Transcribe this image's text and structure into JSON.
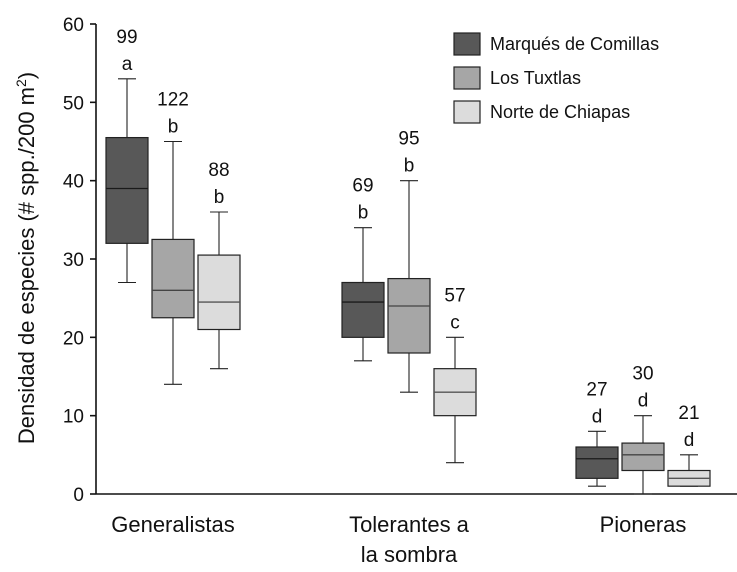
{
  "chart_data": {
    "type": "box",
    "ylabel": "Densidad de especies (# spp./200 m²)",
    "ylabel_main": "Densidad de especies (# spp./200 m",
    "ylabel_sup": "2",
    "ylabel_end": ")",
    "ylim": [
      0,
      60
    ],
    "yticks": [
      0,
      10,
      20,
      30,
      40,
      50,
      60
    ],
    "grid": false,
    "legend_position": "top-right",
    "categories": [
      "Generalistas",
      "Tolerantes a la sombra",
      "Pioneras"
    ],
    "category_lines": [
      [
        "Generalistas"
      ],
      [
        "Tolerantes a",
        "la sombra"
      ],
      [
        "Pioneras"
      ]
    ],
    "series": [
      {
        "name": "Marqués de Comillas",
        "color": "#585858",
        "median_color": "#1a1a1a",
        "boxes": [
          {
            "whisker_low": 27,
            "q1": 32,
            "median": 39,
            "q3": 45.5,
            "whisker_high": 53,
            "n": "99",
            "letter": "a"
          },
          {
            "whisker_low": 17,
            "q1": 20,
            "median": 24.5,
            "q3": 27,
            "whisker_high": 34,
            "n": "69",
            "letter": "b"
          },
          {
            "whisker_low": 1,
            "q1": 2,
            "median": 4.5,
            "q3": 6,
            "whisker_high": 8,
            "n": "27",
            "letter": "d"
          }
        ]
      },
      {
        "name": "Los Tuxtlas",
        "color": "#a6a6a6",
        "median_color": "#444444",
        "boxes": [
          {
            "whisker_low": 14,
            "q1": 22.5,
            "median": 26,
            "q3": 32.5,
            "whisker_high": 45,
            "n": "122",
            "letter": "b"
          },
          {
            "whisker_low": 13,
            "q1": 18,
            "median": 24,
            "q3": 27.5,
            "whisker_high": 40,
            "n": "95",
            "letter": "b"
          },
          {
            "whisker_low": 0,
            "q1": 3,
            "median": 5,
            "q3": 6.5,
            "whisker_high": 10,
            "n": "30",
            "letter": "d"
          }
        ]
      },
      {
        "name": "Norte de Chiapas",
        "color": "#dcdcdc",
        "median_color": "#555555",
        "boxes": [
          {
            "whisker_low": 16,
            "q1": 21,
            "median": 24.5,
            "q3": 30.5,
            "whisker_high": 36,
            "n": "88",
            "letter": "b"
          },
          {
            "whisker_low": 4,
            "q1": 10,
            "median": 13,
            "q3": 16,
            "whisker_high": 20,
            "n": "57",
            "letter": "c"
          },
          {
            "whisker_low": 1,
            "q1": 1,
            "median": 2,
            "q3": 3,
            "whisker_high": 5,
            "n": "21",
            "letter": "d"
          }
        ]
      }
    ]
  }
}
